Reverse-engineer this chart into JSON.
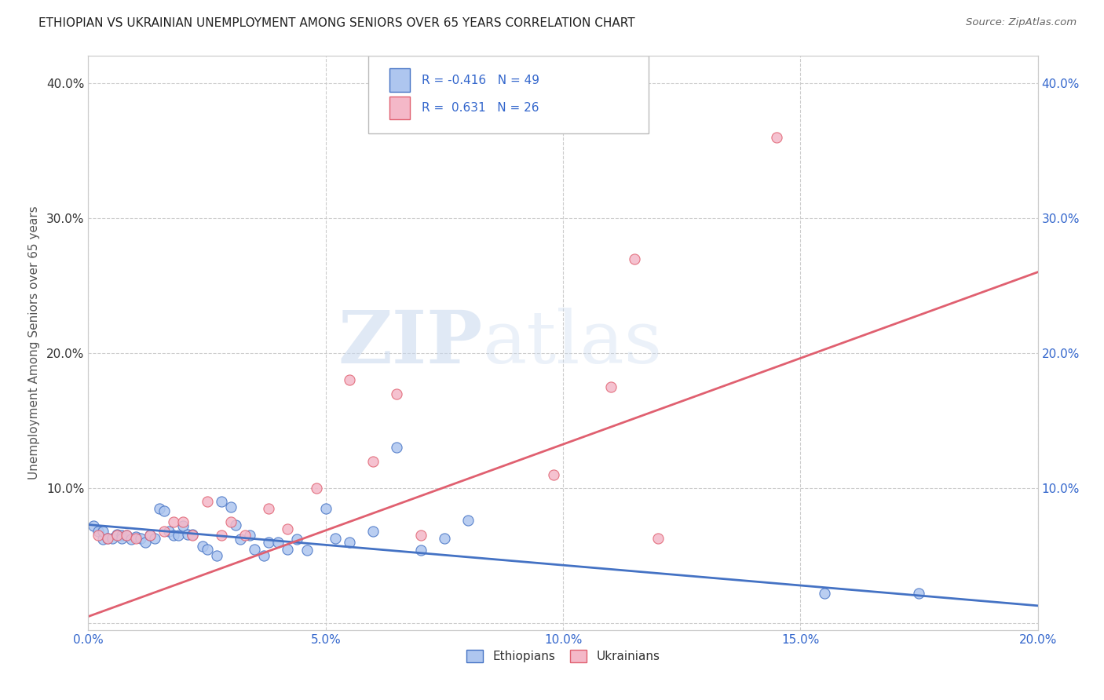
{
  "title": "ETHIOPIAN VS UKRAINIAN UNEMPLOYMENT AMONG SENIORS OVER 65 YEARS CORRELATION CHART",
  "source": "Source: ZipAtlas.com",
  "ylabel": "Unemployment Among Seniors over 65 years",
  "x_min": 0.0,
  "x_max": 0.2,
  "y_min": -0.005,
  "y_max": 0.42,
  "x_ticks": [
    0.0,
    0.05,
    0.1,
    0.15,
    0.2
  ],
  "y_ticks": [
    0.0,
    0.1,
    0.2,
    0.3,
    0.4
  ],
  "watermark_zip": "ZIP",
  "watermark_atlas": "atlas",
  "ethiopian_R": "-0.416",
  "ethiopian_N": "49",
  "ukrainian_R": "0.631",
  "ukrainian_N": "26",
  "scatter_ethiopian_x": [
    0.001,
    0.002,
    0.003,
    0.003,
    0.004,
    0.005,
    0.006,
    0.007,
    0.007,
    0.008,
    0.009,
    0.01,
    0.011,
    0.012,
    0.013,
    0.014,
    0.015,
    0.016,
    0.017,
    0.018,
    0.019,
    0.02,
    0.021,
    0.022,
    0.024,
    0.025,
    0.027,
    0.028,
    0.03,
    0.031,
    0.032,
    0.034,
    0.035,
    0.037,
    0.038,
    0.04,
    0.042,
    0.044,
    0.046,
    0.05,
    0.052,
    0.055,
    0.06,
    0.065,
    0.07,
    0.075,
    0.08,
    0.155,
    0.175
  ],
  "scatter_ethiopian_y": [
    0.072,
    0.068,
    0.062,
    0.068,
    0.063,
    0.063,
    0.066,
    0.065,
    0.063,
    0.065,
    0.062,
    0.064,
    0.063,
    0.06,
    0.065,
    0.063,
    0.085,
    0.083,
    0.068,
    0.065,
    0.065,
    0.072,
    0.066,
    0.066,
    0.057,
    0.055,
    0.05,
    0.09,
    0.086,
    0.073,
    0.062,
    0.065,
    0.055,
    0.05,
    0.06,
    0.06,
    0.055,
    0.062,
    0.054,
    0.085,
    0.063,
    0.06,
    0.068,
    0.13,
    0.054,
    0.063,
    0.076,
    0.022,
    0.022
  ],
  "scatter_ukrainian_x": [
    0.002,
    0.004,
    0.006,
    0.008,
    0.01,
    0.013,
    0.016,
    0.018,
    0.02,
    0.022,
    0.025,
    0.028,
    0.03,
    0.033,
    0.038,
    0.042,
    0.048,
    0.055,
    0.06,
    0.065,
    0.07,
    0.098,
    0.11,
    0.115,
    0.12,
    0.145
  ],
  "scatter_ukrainian_y": [
    0.065,
    0.063,
    0.065,
    0.065,
    0.063,
    0.065,
    0.068,
    0.075,
    0.075,
    0.065,
    0.09,
    0.065,
    0.075,
    0.065,
    0.085,
    0.07,
    0.1,
    0.18,
    0.12,
    0.17,
    0.065,
    0.11,
    0.175,
    0.27,
    0.063,
    0.36
  ],
  "trend_ethiopian_x0": 0.0,
  "trend_ethiopian_x1": 0.2,
  "trend_ethiopian_y0": 0.073,
  "trend_ethiopian_y1": 0.013,
  "trend_ukrainian_x0": 0.0,
  "trend_ukrainian_x1": 0.2,
  "trend_ukrainian_y0": 0.005,
  "trend_ukrainian_y1": 0.26,
  "color_eth_face": "#aec6ef",
  "color_eth_edge": "#4472c4",
  "color_ukr_face": "#f4b8c8",
  "color_ukr_edge": "#e06070",
  "color_eth_line": "#4472c4",
  "color_ukr_line": "#e06070",
  "background_color": "#ffffff",
  "grid_color": "#cccccc",
  "scatter_size": 90,
  "title_fontsize": 11,
  "axis_fontsize": 11,
  "legend_fontsize": 11
}
